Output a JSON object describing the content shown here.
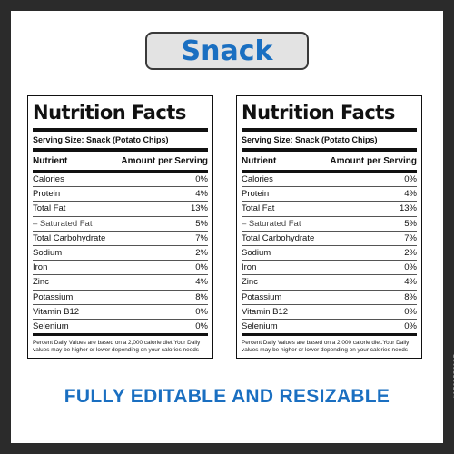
{
  "title": "Snack",
  "tagline": "FULLY EDITABLE AND RESIZABLE",
  "stock_id": "#1782556127",
  "brand_color": "#1a6fc1",
  "label": {
    "heading": "Nutrition Facts",
    "serving": "Serving Size: Snack (Potato Chips)",
    "col_nutrient": "Nutrient",
    "col_amount": "Amount per Serving",
    "rows": [
      {
        "name": "Calories",
        "value": "0%"
      },
      {
        "name": "Protein",
        "value": "4%"
      },
      {
        "name": "Total Fat",
        "value": "13%"
      },
      {
        "name": "– Saturated Fat",
        "value": "5%"
      },
      {
        "name": "Total Carbohydrate",
        "value": "7%"
      },
      {
        "name": "Sodium",
        "value": "2%"
      },
      {
        "name": "Iron",
        "value": "0%"
      },
      {
        "name": "Zinc",
        "value": "4%"
      },
      {
        "name": "Potassium",
        "value": "8%"
      },
      {
        "name": "Vitamin B12",
        "value": "0%"
      },
      {
        "name": "Selenium",
        "value": "0%"
      }
    ],
    "footnote": "Percent Daily Values are based on a 2,000 calorie diet.Your Daily values may be higher or lower depending on your calories needs"
  }
}
